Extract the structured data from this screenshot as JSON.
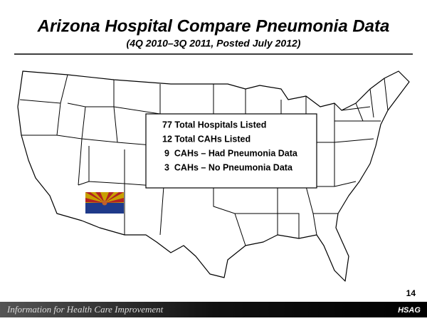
{
  "title": "Arizona Hospital Compare Pneumonia Data",
  "subtitle": "(4Q 2010–3Q 2011, Posted July 2012)",
  "info_box": {
    "lines": [
      "77 Total Hospitals Listed",
      "12 Total CAHs Listed",
      "9  CAHs – Had Pneumonia Data",
      "3  CAHs – No Pneumonia Data"
    ]
  },
  "page_number": "14",
  "footer": {
    "tagline": "Information for Health Care Improvement",
    "logo": "HSAG"
  }
}
